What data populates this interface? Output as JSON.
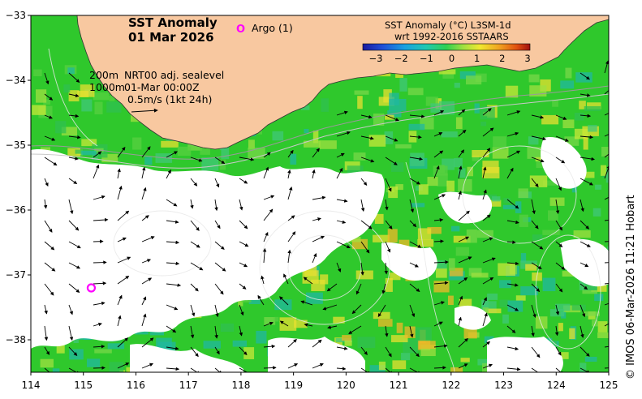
{
  "title": {
    "line1": "SST Anomaly",
    "line2": "01 Mar 2026"
  },
  "argo": {
    "label": "Argo (1)",
    "marker": "O",
    "color": "#ff00ff",
    "count": 1
  },
  "argo_floats": [
    {
      "lon": 115.15,
      "lat": -37.2
    }
  ],
  "legend": {
    "title_line1": "SST Anomaly (°C) L3SM-1d",
    "title_line2": "wrt 1992-2016 SSTAARS",
    "ticks": [
      "−3",
      "−2",
      "−1",
      "0",
      "1",
      "2",
      "3"
    ],
    "range": [
      -3,
      3
    ],
    "colors": [
      "#1a1a9e",
      "#2050d8",
      "#1aa0e0",
      "#20c8b0",
      "#30d050",
      "#a0e040",
      "#f0e830",
      "#f0a020",
      "#e05010",
      "#a01010"
    ]
  },
  "annotations": {
    "depth_line1": "200m",
    "depth_line2": "1000m",
    "product_line1": "NRT00 adj. sealevel",
    "product_line2": "01-Mar 00:00Z",
    "scale_label": "0.5m/s (1kt 24h)"
  },
  "axes": {
    "x_ticks": [
      "114",
      "115",
      "116",
      "117",
      "118",
      "119",
      "120",
      "121",
      "122",
      "123",
      "124",
      "125"
    ],
    "y_ticks": [
      "−33",
      "−34",
      "−35",
      "−36",
      "−37",
      "−38"
    ],
    "lon_range": [
      114,
      125
    ],
    "lat_range": [
      -38.5,
      -33
    ]
  },
  "colors": {
    "land": "#f8c8a0",
    "ocean_base": "#30c830",
    "argo": "#ff00ff"
  },
  "credit": "© IMOS 06-Mar-2026 11:21 Hobart"
}
